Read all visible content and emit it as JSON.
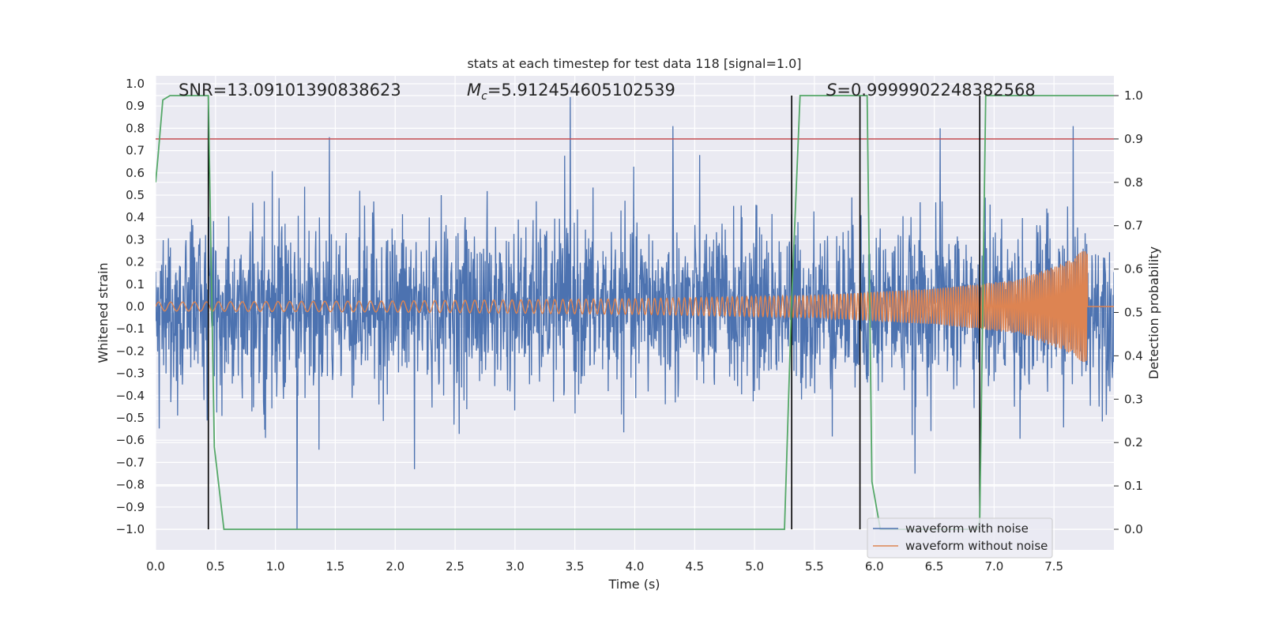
{
  "chart_data": {
    "type": "line",
    "title": "stats at each timestep for test data 118 [signal=1.0]",
    "xlabel": "Time (s)",
    "ylabel_left": "Whitened strain",
    "ylabel_right": "Detection probability",
    "xlim": [
      0,
      8
    ],
    "ylim_left": [
      -1.1,
      1.1
    ],
    "ylim_right": [
      -0.05,
      1.03
    ],
    "x_ticks": [
      "0.0",
      "0.5",
      "1.0",
      "1.5",
      "2.0",
      "2.5",
      "3.0",
      "3.5",
      "4.0",
      "4.5",
      "5.0",
      "5.5",
      "6.0",
      "6.5",
      "7.0",
      "7.5"
    ],
    "y_left_ticks": [
      "1.0",
      "0.9",
      "0.8",
      "0.7",
      "0.6",
      "0.5",
      "0.4",
      "0.3",
      "0.2",
      "0.1",
      "0.0",
      "−0.1",
      "−0.2",
      "−0.3",
      "−0.4",
      "−0.5",
      "−0.6",
      "−0.7",
      "−0.8",
      "−0.9",
      "−1.0"
    ],
    "y_right_ticks": [
      "1.0",
      "0.9",
      "0.8",
      "0.7",
      "0.6",
      "0.5",
      "0.4",
      "0.3",
      "0.2",
      "0.1",
      "0.0"
    ],
    "grid": true,
    "legend_position": "bottom-right",
    "annotations": {
      "snr_prefix": "SNR=",
      "snr_value": "13.09101390838623",
      "mc_symbol": "M",
      "mc_subscript": "c",
      "mc_value": "=5.912454605102539",
      "s_symbol": "S",
      "s_value": "=0.9999902248382568"
    },
    "series": [
      {
        "name": "waveform with noise",
        "color": "#4c72b0",
        "description_envelope": [
          -0.5,
          0.5
        ],
        "notable_peaks": [
          {
            "x": 1.45,
            "y": 0.76
          },
          {
            "x": 3.46,
            "y": 0.94
          },
          {
            "x": 4.32,
            "y": 0.81
          },
          {
            "x": 6.55,
            "y": 0.8
          },
          {
            "x": 7.66,
            "y": 0.81
          },
          {
            "x": 1.18,
            "y": -1.0
          },
          {
            "x": 2.16,
            "y": -0.73
          },
          {
            "x": 6.34,
            "y": -0.75
          }
        ]
      },
      {
        "name": "waveform without noise",
        "color": "#dd8452",
        "envelope": [
          {
            "x": 0.0,
            "amp": 0.02
          },
          {
            "x": 2.0,
            "amp": 0.025
          },
          {
            "x": 4.0,
            "amp": 0.035
          },
          {
            "x": 5.5,
            "amp": 0.05
          },
          {
            "x": 6.5,
            "amp": 0.08
          },
          {
            "x": 7.2,
            "amp": 0.12
          },
          {
            "x": 7.6,
            "amp": 0.2
          },
          {
            "x": 7.77,
            "amp": 0.27
          }
        ],
        "end_time": 7.78
      },
      {
        "name": "detection probability",
        "color": "#55a868",
        "axis": "right",
        "x": [
          0.0,
          0.02,
          0.06,
          0.12,
          0.44,
          0.49,
          0.57,
          5.25,
          5.31,
          5.38,
          5.94,
          5.98,
          6.05,
          6.86,
          6.88,
          6.93,
          8.0
        ],
        "y": [
          0.8,
          0.86,
          0.99,
          1.0,
          1.0,
          0.19,
          0.0,
          0.0,
          0.53,
          1.0,
          1.0,
          0.11,
          0.0,
          0.0,
          0.02,
          1.0,
          1.0
        ]
      }
    ],
    "threshold_line": {
      "axis": "right",
      "y": 0.9,
      "color": "#c44e52"
    },
    "vertical_markers": [
      0.44,
      5.31,
      5.88,
      6.88
    ]
  },
  "legend": {
    "items": [
      {
        "label": "waveform with noise",
        "color": "#4c72b0"
      },
      {
        "label": "waveform without noise",
        "color": "#dd8452"
      }
    ]
  },
  "colors": {
    "plot_background": "#eaeaf2",
    "grid": "#ffffff",
    "text": "#262626"
  }
}
